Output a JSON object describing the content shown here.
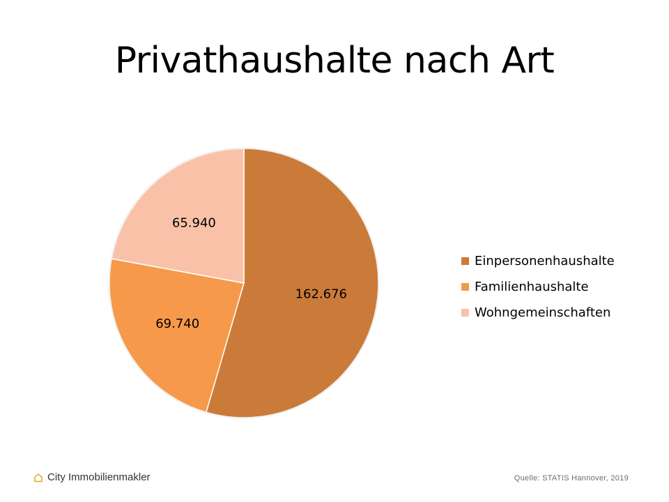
{
  "chart_data": {
    "type": "pie",
    "title": "Privathaushalte nach Art",
    "categories": [
      "Einpersonenhaushalte",
      "Familienhaushalte",
      "Wohngemeinschaften"
    ],
    "values": [
      162676,
      69740,
      65940
    ],
    "data_labels": [
      "162.676",
      "69.740",
      "65.940"
    ],
    "colors": [
      "#CB7B39",
      "#F6994A",
      "#F9C2A8"
    ],
    "start_angle_deg": 0,
    "direction": "clockwise",
    "legend_placement": "right"
  },
  "footer": {
    "brand": "City Immobilienmakler",
    "brand_icon": "house-outline-icon",
    "brand_icon_color": "#E0A526",
    "source": "Quelle: STATIS Hannover, 2019"
  }
}
